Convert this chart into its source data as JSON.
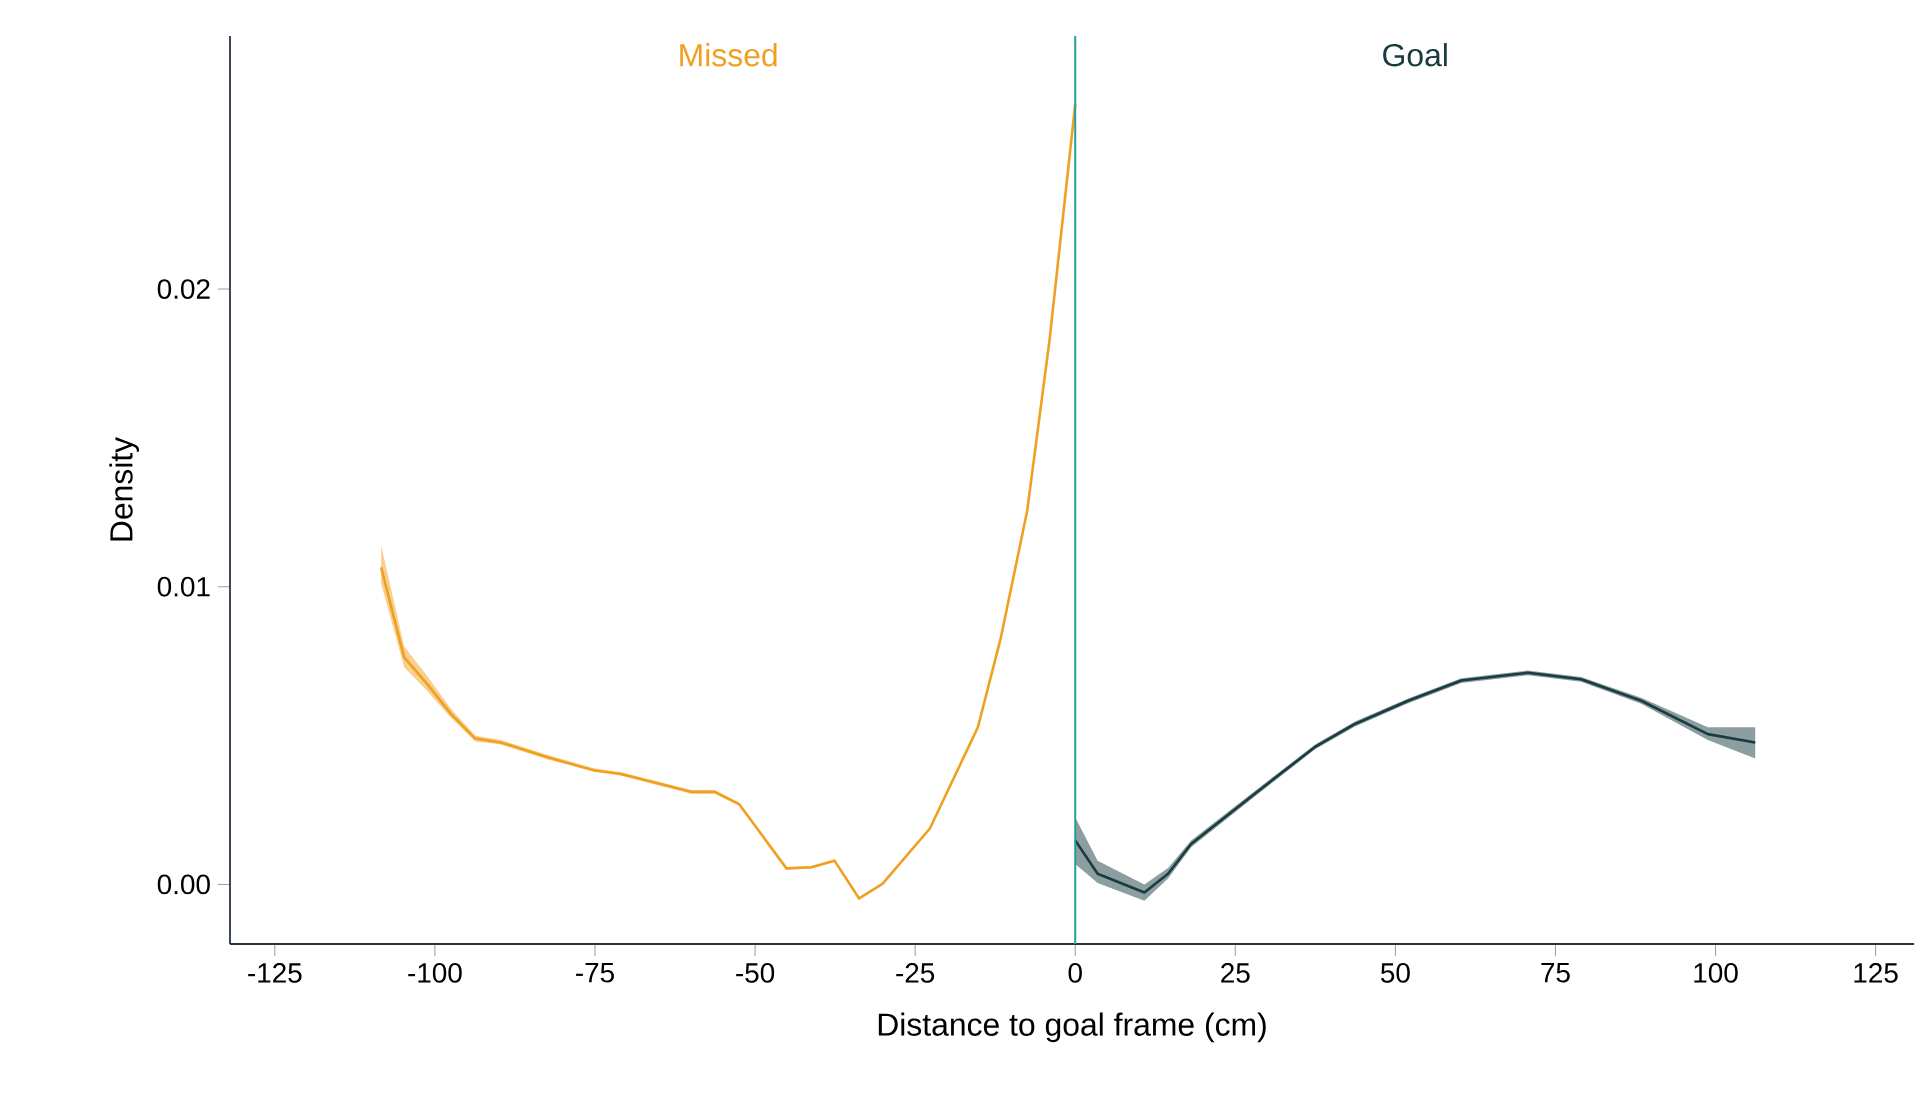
{
  "chart_data": {
    "type": "line",
    "xlabel": "Distance to goal frame (cm)",
    "ylabel": "Density",
    "xlim": [
      -132,
      131
    ],
    "ylim": [
      -0.002,
      0.0285
    ],
    "xticks": [
      -125,
      -100,
      -75,
      -50,
      -25,
      0,
      25,
      50,
      75,
      100,
      125
    ],
    "yticks": [
      {
        "value": 0,
        "label": "0.00"
      },
      {
        "value": 0.01,
        "label": "0.01"
      },
      {
        "value": 0.02,
        "label": "0.02"
      }
    ],
    "grid": false,
    "legend": false,
    "marker": "none",
    "line_style": "solid",
    "ref_lines": [
      {
        "axis": "x",
        "value": 0,
        "color": "#2a9d9a"
      }
    ],
    "series": [
      {
        "name": "Missed",
        "color": "#f0a020",
        "x": [
          -108.4,
          -104.8,
          -101.2,
          -97.5,
          -93.7,
          -89.7,
          -82.4,
          -75.1,
          -70.9,
          -60,
          -56.3,
          -52.5,
          -45.1,
          -41.2,
          -37.6,
          -33.75,
          -30.1,
          -22.7,
          -15.2,
          -11.6,
          -7.5,
          -4,
          0
        ],
        "values": [
          0.01065,
          0.00763,
          0.00673,
          0.00573,
          0.0049,
          0.00477,
          0.00427,
          0.00383,
          0.00371,
          0.00311,
          0.00311,
          0.0027,
          0.00054,
          0.00058,
          0.0008,
          -0.00047,
          2e-05,
          0.00188,
          0.00528,
          0.0083,
          0.01255,
          0.0183,
          0.0262
        ],
        "lower": [
          0.0101,
          0.0073,
          0.0065,
          0.0056,
          0.0048,
          0.0047,
          0.0042,
          0.0038,
          0.00365,
          0.00305,
          0.00305,
          0.00265,
          0.0005,
          0.00054,
          0.00076,
          -0.0005,
          0.0,
          0.00185,
          0.00525,
          0.00827,
          0.01252,
          0.01827,
          0.0261
        ],
        "upper": [
          0.0114,
          0.008,
          0.007,
          0.0059,
          0.005,
          0.00485,
          0.00435,
          0.0039,
          0.00377,
          0.00317,
          0.00317,
          0.00275,
          0.00058,
          0.00062,
          0.00084,
          -0.00044,
          5e-05,
          0.00191,
          0.00531,
          0.00833,
          0.01258,
          0.01833,
          0.0263
        ]
      },
      {
        "name": "Goal",
        "color": "#1a3c40",
        "x": [
          0,
          3.5,
          10.8,
          14.5,
          18.1,
          28,
          37.4,
          43.7,
          52,
          60.3,
          70.7,
          79,
          88.4,
          98.8,
          106.2
        ],
        "values": [
          0.00148,
          0.00036,
          -0.00027,
          0.00036,
          0.00136,
          0.00304,
          0.00461,
          0.00539,
          0.00617,
          0.00685,
          0.00711,
          0.00689,
          0.00617,
          0.00505,
          0.00477
        ],
        "lower": [
          0.00069,
          5e-05,
          -0.00055,
          0.0002,
          0.00125,
          0.00295,
          0.00453,
          0.00531,
          0.00609,
          0.00677,
          0.00703,
          0.00681,
          0.00607,
          0.00485,
          0.00423
        ],
        "upper": [
          0.00226,
          0.0008,
          0.0,
          0.00055,
          0.00148,
          0.00313,
          0.00469,
          0.00547,
          0.00625,
          0.00693,
          0.00719,
          0.00697,
          0.00627,
          0.00528,
          0.00528
        ]
      }
    ]
  }
}
